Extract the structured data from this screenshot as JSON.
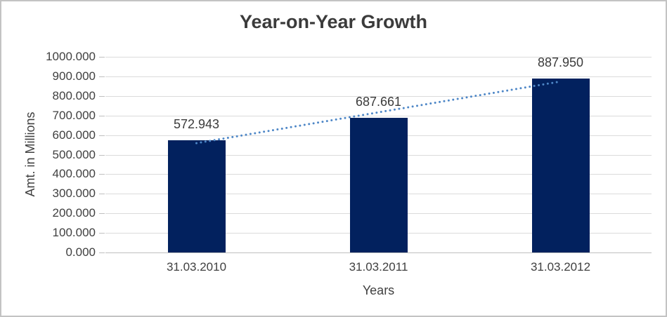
{
  "chart_data": {
    "type": "bar",
    "title": "Year-on-Year Growth",
    "xlabel": "Years",
    "ylabel": "Amt. in Millions",
    "categories": [
      "31.03.2010",
      "31.03.2011",
      "31.03.2012"
    ],
    "values": [
      572.943,
      687.661,
      887.95
    ],
    "data_labels": [
      "572.943",
      "687.661",
      "887.950"
    ],
    "ylim": [
      0,
      1000
    ],
    "ytick_step": 100,
    "ytick_labels": [
      "0.000",
      "100.000",
      "200.000",
      "300.000",
      "400.000",
      "500.000",
      "600.000",
      "700.000",
      "800.000",
      "900.000",
      "1000.000"
    ],
    "grid": true,
    "legend": "none",
    "trendline": {
      "style": "dotted",
      "from_value": 558.7,
      "to_value": 873.7
    },
    "colors": {
      "bar": "#02215e",
      "trendline": "#4e87c7",
      "gridline": "#dbdbdb",
      "axis_line": "#bfbfbf",
      "title_text": "#3b3b3b",
      "tick_text": "#404040",
      "border": "#c3c3c3",
      "background": "#ffffff"
    }
  }
}
